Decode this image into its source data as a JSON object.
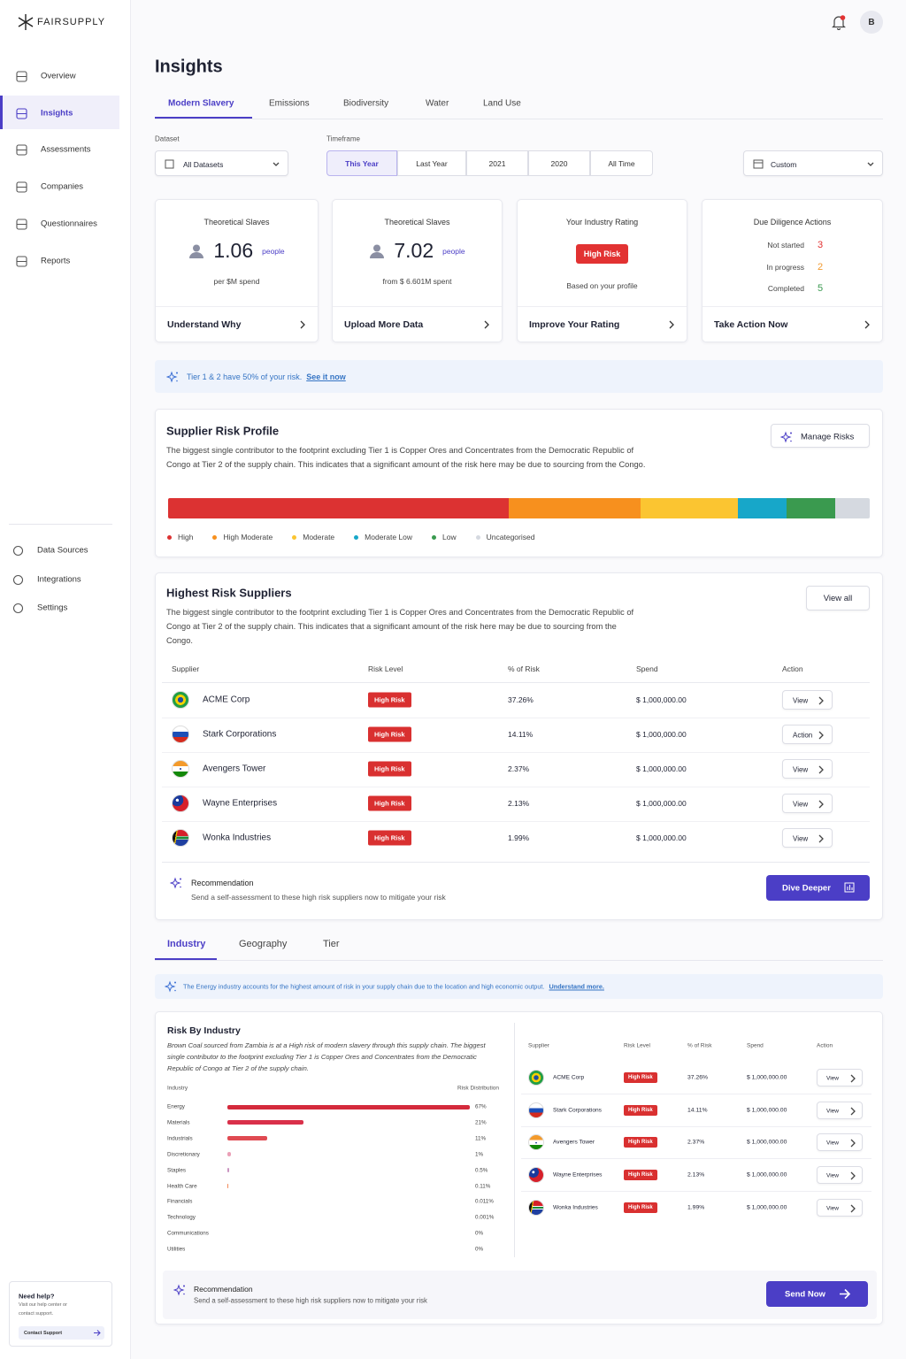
{
  "sidebar": {
    "brand": "FAIRSUPPLY",
    "nav": [
      "Overview",
      "Insights",
      "Assessments",
      "Companies",
      "Questionnaires",
      "Reports"
    ],
    "nav2": [
      "Data Sources",
      "Integrations",
      "Settings"
    ],
    "help": {
      "title": "Need help?",
      "text": "Visit our help center or contact support.",
      "button": "Contact Support"
    }
  },
  "header": {
    "avatar": "B"
  },
  "page": {
    "title": "Insights",
    "tabs": [
      "Modern Slavery",
      "Emissions",
      "Biodiversity",
      "Water",
      "Land Use"
    ]
  },
  "filters": {
    "dataset_label": "Dataset",
    "dataset": "All Datasets",
    "timeframe_label": "Timeframe",
    "timeframes": [
      "This Year",
      "Last Year",
      "2021",
      "2020",
      "All Time"
    ],
    "custom": "Custom"
  },
  "cards": [
    {
      "title": "Theoretical Slaves",
      "value": "1.06",
      "unit": "people",
      "note": "per $M spend",
      "action": "Understand Why"
    },
    {
      "title": "Theoretical Slaves",
      "value": "7.02",
      "unit": "people",
      "note": "from $ 6.601M spent",
      "action": "Upload More Data"
    },
    {
      "title": "Your Industry Rating",
      "badge": "High Risk",
      "note": "Based on your profile",
      "action": "Improve Your Rating"
    },
    {
      "title": "Due Diligence Actions",
      "items": [
        {
          "label": "Not started",
          "value": 3
        },
        {
          "label": "In progress",
          "value": 2
        },
        {
          "label": "Completed",
          "value": 5
        }
      ],
      "action": "Take Action Now"
    }
  ],
  "banner": {
    "text": "Tier 1 & 2 have 50% of your risk.",
    "link": "See it now"
  },
  "risk_profile": {
    "title": "Supplier Risk Profile",
    "description": "The biggest single contributor to the footprint excluding Tier 1 is Copper Ores and Concentrates from the Democratic Republic of Congo at Tier 2 of the supply chain. This indicates that a significant amount of the risk here may be due to sourcing from the Congo.",
    "button": "Manage Risks",
    "segments": [
      {
        "name": "High",
        "color": "#dc3232",
        "value": 49
      },
      {
        "name": "High Moderate",
        "color": "#f7901e",
        "value": 19
      },
      {
        "name": "Moderate",
        "color": "#fbc531",
        "value": 14
      },
      {
        "name": "Moderate Low",
        "color": "#17a7c9",
        "value": 7
      },
      {
        "name": "Low",
        "color": "#3a9a4f",
        "value": 7
      },
      {
        "name": "Uncategorised",
        "color": "#d5d9e0",
        "value": 5
      }
    ]
  },
  "highest_risk": {
    "title": "Highest Risk Suppliers",
    "description": "The biggest single contributor to the footprint excluding Tier 1 is Copper Ores and Concentrates from the Democratic Republic of Congo at Tier 2 of the supply chain. This indicates that a significant amount of the risk here may be due to sourcing from the Congo.",
    "button": "View all",
    "columns": [
      "Supplier",
      "Risk Level",
      "% of Risk",
      "Spend",
      "Action"
    ],
    "rows": [
      [
        "ACME Corp",
        "High Risk",
        "37.26%",
        "$ 1,000,000.00",
        "View"
      ],
      [
        "Stark Corporations",
        "High Risk",
        "14.11%",
        "$ 1,000,000.00",
        "Action"
      ],
      [
        "Avengers Tower",
        "High Risk",
        "2.37%",
        "$ 1,000,000.00",
        "View"
      ],
      [
        "Wayne Enterprises",
        "High Risk",
        "2.13%",
        "$ 1,000,000.00",
        "View"
      ],
      [
        "Wonka Industries",
        "High Risk",
        "1.99%",
        "$ 1,000,000.00",
        "View"
      ]
    ],
    "recommendation": {
      "title": "Recommendation",
      "text": "Send a self-assessment to these high risk suppliers now to mitigate your risk",
      "button": "Dive Deeper"
    }
  },
  "section_tabs": [
    "Industry",
    "Geography",
    "Tier"
  ],
  "industry_banner": {
    "text": "The Energy industry accounts for the highest amount of risk in your supply chain due to the location and high economic output.",
    "link": "Understand more."
  },
  "risk_by_industry": {
    "title": "Risk By Industry",
    "description": "Brown Coal sourced from Zambia is at a High risk of modern slavery through this supply chain. The biggest single contributor to the footprint excluding Tier 1 is Copper Ores and Concentrates from the Democratic Republic of Congo at Tier 2 of the supply chain.",
    "col_industry": "Industry",
    "col_distribution": "Risk Distribution",
    "industries": [
      "Energy",
      "Materials",
      "Industrials",
      "Discretionary",
      "Staples",
      "Health Care",
      "Financials",
      "Technology",
      "Communications",
      "Utilities"
    ],
    "values": [
      67,
      21,
      11,
      1,
      0.5,
      0.11,
      0.011,
      0.001,
      0,
      0
    ],
    "value_labels": [
      "67%",
      "21%",
      "11%",
      "1%",
      "0.5%",
      "0.11%",
      "0.011%",
      "0.001%",
      "0%",
      "0%"
    ],
    "colors": [
      "#d42a3c",
      "#d9304a",
      "#e04a52",
      "#eba0b7",
      "#c994c0",
      "#f28a5a",
      "#f7bdb4",
      "#f4d840",
      "#c5e3a5",
      "#b9bdd0"
    ]
  },
  "industry_table": {
    "columns": [
      "Supplier",
      "Risk Level",
      "% of Risk",
      "Spend",
      "Action"
    ],
    "rows": [
      [
        "ACME Corp",
        "High Risk",
        "37.26%",
        "$ 1,000,000.00",
        "View"
      ],
      [
        "Stark Corporations",
        "High Risk",
        "14.11%",
        "$ 1,000,000.00",
        "View"
      ],
      [
        "Avengers Tower",
        "High Risk",
        "2.37%",
        "$ 1,000,000.00",
        "View"
      ],
      [
        "Wayne Enterprises",
        "High Risk",
        "2.13%",
        "$ 1,000,000.00",
        "View"
      ],
      [
        "Wonka Industries",
        "High Risk",
        "1.99%",
        "$ 1,000,000.00",
        "View"
      ]
    ]
  },
  "recommendation2": {
    "title": "Recommendation",
    "text": "Send a self-assessment to these high risk suppliers now to mitigate your risk",
    "button": "Send Now"
  }
}
